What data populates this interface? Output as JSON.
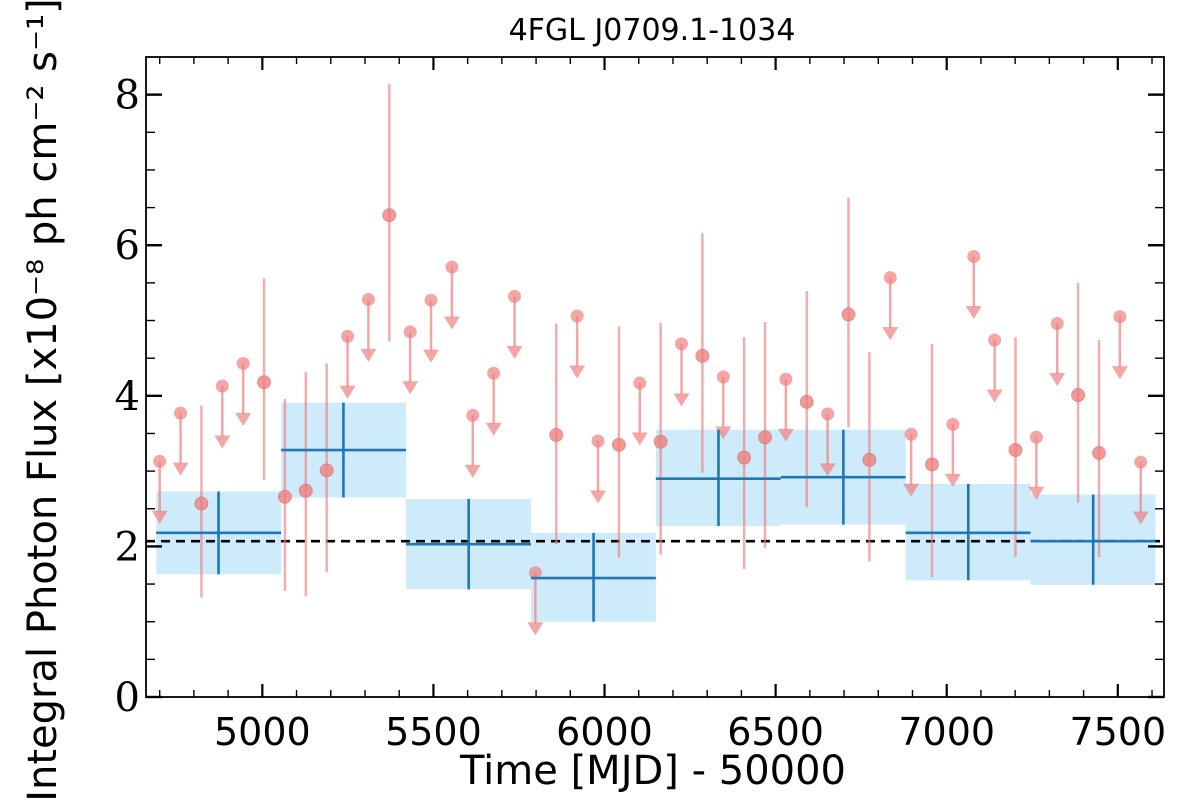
{
  "chart_data": {
    "type": "scatter",
    "title": "4FGL J0709.1-1034",
    "xlabel": "Time [MJD] - 50000",
    "ylabel": "Integral Photon Flux [x10⁻⁸ ph cm⁻² s⁻¹]",
    "xlim": [
      4660,
      7635
    ],
    "ylim": [
      0,
      8.5
    ],
    "xticks": [
      5000,
      5500,
      6000,
      6500,
      7000,
      7500
    ],
    "yticks": [
      0,
      2,
      4,
      6,
      8
    ],
    "xtick_labels": [
      "5000",
      "5500",
      "6000",
      "6500",
      "7000",
      "7500"
    ],
    "ytick_labels": [
      "0",
      "2",
      "4",
      "6",
      "8"
    ],
    "average_flux": 2.07,
    "colors": {
      "detection": "#ef8080",
      "bin_line": "#1f77b4",
      "bin_fill": "#cdebfb",
      "average_line": "#000000"
    },
    "short_bins": [
      {
        "x": 4700,
        "y": 3.13,
        "upper_limit": true
      },
      {
        "x": 4761,
        "y": 3.77,
        "upper_limit": true
      },
      {
        "x": 4822,
        "y": 2.57,
        "yerr": [
          1.25,
          1.3
        ],
        "upper_limit": false
      },
      {
        "x": 4883,
        "y": 4.13,
        "upper_limit": true
      },
      {
        "x": 4944,
        "y": 4.43,
        "upper_limit": true
      },
      {
        "x": 5005,
        "y": 4.18,
        "yerr": [
          1.3,
          1.38
        ],
        "upper_limit": false
      },
      {
        "x": 5066,
        "y": 2.66,
        "yerr": [
          1.25,
          1.3
        ],
        "upper_limit": false
      },
      {
        "x": 5127,
        "y": 2.74,
        "yerr": [
          1.4,
          1.58
        ],
        "upper_limit": false
      },
      {
        "x": 5188,
        "y": 3.01,
        "yerr": [
          1.35,
          1.42
        ],
        "upper_limit": false
      },
      {
        "x": 5249,
        "y": 4.79,
        "upper_limit": true
      },
      {
        "x": 5310,
        "y": 5.28,
        "upper_limit": true
      },
      {
        "x": 5371,
        "y": 6.4,
        "yerr": [
          1.68,
          1.74
        ],
        "upper_limit": false
      },
      {
        "x": 5432,
        "y": 4.85,
        "upper_limit": true
      },
      {
        "x": 5493,
        "y": 5.27,
        "upper_limit": true
      },
      {
        "x": 5554,
        "y": 5.71,
        "upper_limit": true
      },
      {
        "x": 5615,
        "y": 3.74,
        "upper_limit": true
      },
      {
        "x": 5676,
        "y": 4.3,
        "upper_limit": true
      },
      {
        "x": 5737,
        "y": 5.32,
        "upper_limit": true
      },
      {
        "x": 5798,
        "y": 1.65,
        "upper_limit": true
      },
      {
        "x": 5859,
        "y": 3.48,
        "yerr": [
          1.45,
          1.48
        ],
        "upper_limit": false
      },
      {
        "x": 5920,
        "y": 5.06,
        "upper_limit": true
      },
      {
        "x": 5981,
        "y": 3.4,
        "upper_limit": true
      },
      {
        "x": 6042,
        "y": 3.35,
        "yerr": [
          1.5,
          1.57
        ],
        "upper_limit": false
      },
      {
        "x": 6103,
        "y": 4.17,
        "upper_limit": true
      },
      {
        "x": 6164,
        "y": 3.39,
        "yerr": [
          1.5,
          1.58
        ],
        "upper_limit": false
      },
      {
        "x": 6225,
        "y": 4.69,
        "upper_limit": true
      },
      {
        "x": 6286,
        "y": 4.53,
        "yerr": [
          1.55,
          1.63
        ],
        "upper_limit": false
      },
      {
        "x": 6347,
        "y": 4.25,
        "upper_limit": true
      },
      {
        "x": 6408,
        "y": 3.18,
        "yerr": [
          1.48,
          1.6
        ],
        "upper_limit": false
      },
      {
        "x": 6469,
        "y": 3.45,
        "yerr": [
          1.47,
          1.53
        ],
        "upper_limit": false
      },
      {
        "x": 6530,
        "y": 4.22,
        "upper_limit": true
      },
      {
        "x": 6591,
        "y": 3.92,
        "yerr": [
          1.4,
          1.47
        ],
        "upper_limit": false
      },
      {
        "x": 6652,
        "y": 3.76,
        "upper_limit": true
      },
      {
        "x": 6713,
        "y": 5.08,
        "yerr": [
          1.5,
          1.55
        ],
        "upper_limit": false
      },
      {
        "x": 6774,
        "y": 3.15,
        "yerr": [
          1.35,
          1.43
        ],
        "upper_limit": false
      },
      {
        "x": 6835,
        "y": 5.57,
        "upper_limit": true
      },
      {
        "x": 6896,
        "y": 3.49,
        "upper_limit": true
      },
      {
        "x": 6957,
        "y": 3.09,
        "yerr": [
          1.5,
          1.6
        ],
        "upper_limit": false
      },
      {
        "x": 7018,
        "y": 3.62,
        "upper_limit": true
      },
      {
        "x": 7079,
        "y": 5.85,
        "upper_limit": true
      },
      {
        "x": 7140,
        "y": 4.74,
        "upper_limit": true
      },
      {
        "x": 7201,
        "y": 3.28,
        "yerr": [
          1.42,
          1.5
        ],
        "upper_limit": false
      },
      {
        "x": 7262,
        "y": 3.45,
        "upper_limit": true
      },
      {
        "x": 7323,
        "y": 4.96,
        "upper_limit": true
      },
      {
        "x": 7384,
        "y": 4.01,
        "yerr": [
          1.43,
          1.49
        ],
        "upper_limit": false
      },
      {
        "x": 7445,
        "y": 3.24,
        "yerr": [
          1.38,
          1.5
        ],
        "upper_limit": false
      },
      {
        "x": 7506,
        "y": 5.05,
        "upper_limit": true
      },
      {
        "x": 7567,
        "y": 3.12,
        "upper_limit": true
      }
    ],
    "long_bins": [
      {
        "x_start": 4690,
        "x_end": 5055,
        "x": 4872,
        "y": 2.18,
        "yerr": [
          0.55,
          0.55
        ]
      },
      {
        "x_start": 5055,
        "x_end": 5420,
        "x": 5237,
        "y": 3.28,
        "yerr": [
          0.63,
          0.63
        ]
      },
      {
        "x_start": 5420,
        "x_end": 5785,
        "x": 5603,
        "y": 2.03,
        "yerr": [
          0.6,
          0.6
        ]
      },
      {
        "x_start": 5785,
        "x_end": 6150,
        "x": 5968,
        "y": 1.58,
        "yerr": [
          0.58,
          0.6
        ]
      },
      {
        "x_start": 6150,
        "x_end": 6515,
        "x": 6333,
        "y": 2.9,
        "yerr": [
          0.63,
          0.65
        ]
      },
      {
        "x_start": 6515,
        "x_end": 6880,
        "x": 6698,
        "y": 2.92,
        "yerr": [
          0.63,
          0.63
        ]
      },
      {
        "x_start": 6880,
        "x_end": 7245,
        "x": 7063,
        "y": 2.18,
        "yerr": [
          0.63,
          0.65
        ]
      },
      {
        "x_start": 7245,
        "x_end": 7610,
        "x": 7428,
        "y": 2.07,
        "yerr": [
          0.58,
          0.62
        ]
      }
    ]
  }
}
